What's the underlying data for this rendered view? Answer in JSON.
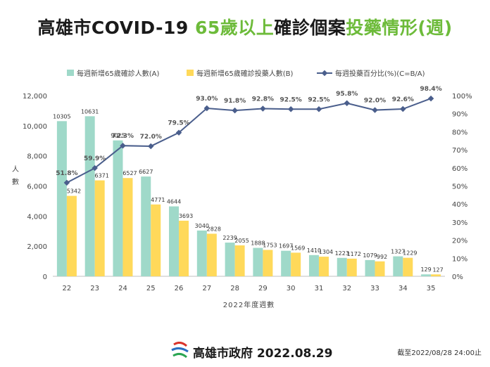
{
  "title": {
    "part1": "高雄市COVID-19 ",
    "part2": "65歲以上",
    "part3": "確診個案",
    "part4": "投藥情形(週)"
  },
  "legend": {
    "series_a": "每週新增65歲確診人數(A)",
    "series_b": "每週新增65歲確診投藥人數(B)",
    "series_c": "每週投藥百分比(%)(C=B/A)"
  },
  "colors": {
    "series_a": "#9fd9c9",
    "series_b": "#ffd95a",
    "series_c": "#4a5e8c",
    "title_accent": "#6dbb3a"
  },
  "footer": {
    "org": "高雄市政府 2022.08.29",
    "cutoff": "截至2022/08/28 24:00止",
    "logo_icon": "kaohsiung-city-logo-icon"
  },
  "chart_data": {
    "type": "bar",
    "categories": [
      "22",
      "23",
      "24",
      "25",
      "26",
      "27",
      "28",
      "29",
      "30",
      "31",
      "32",
      "33",
      "34",
      "35"
    ],
    "series": [
      {
        "name": "每週新增65歲確診人數(A)",
        "values": [
          10305,
          10631,
          9025,
          6627,
          4644,
          3040,
          2239,
          1888,
          1697,
          1410,
          1223,
          1079,
          1327,
          129
        ]
      },
      {
        "name": "每週新增65歲確診投藥人數(B)",
        "values": [
          5342,
          6371,
          6527,
          4771,
          3693,
          2828,
          2055,
          1753,
          1569,
          1304,
          1172,
          992,
          1229,
          127
        ]
      },
      {
        "name": "每週投藥百分比(%)(C=B/A)",
        "type": "line",
        "axis": "right",
        "values": [
          51.8,
          59.9,
          72.3,
          72.0,
          79.5,
          93.0,
          91.8,
          92.8,
          92.5,
          92.5,
          95.8,
          92.0,
          92.6,
          98.4
        ]
      }
    ],
    "xlabel": "2022年度週數",
    "ylabel": "人數",
    "ylim": [
      0,
      12000
    ],
    "yticks": [
      "0",
      "2,000",
      "4,000",
      "6,000",
      "8,000",
      "10,000",
      "12,000"
    ],
    "y2lim": [
      0,
      100
    ],
    "y2ticks": [
      "0%",
      "10%",
      "20%",
      "30%",
      "40%",
      "50%",
      "60%",
      "70%",
      "80%",
      "90%",
      "100%"
    ],
    "a_labels": [
      "10305",
      "10631",
      "9025",
      "6627",
      "4644",
      "3040",
      "2239",
      "1888",
      "1697",
      "1410",
      "1223",
      "1079",
      "1327",
      "129"
    ],
    "b_labels": [
      "5342",
      "6371",
      "6527",
      "4771",
      "3693",
      "2828",
      "2055",
      "1753",
      "1569",
      "1304",
      "1172",
      "992",
      "1229",
      "127"
    ],
    "c_labels": [
      "51.8%",
      "59.9%",
      "72.3%",
      "72.0%",
      "79.5%",
      "93.0%",
      "91.8%",
      "92.8%",
      "92.5%",
      "92.5%",
      "95.8%",
      "92.0%",
      "92.6%",
      "98.4%"
    ],
    "legend_position": "top",
    "grid": false
  }
}
